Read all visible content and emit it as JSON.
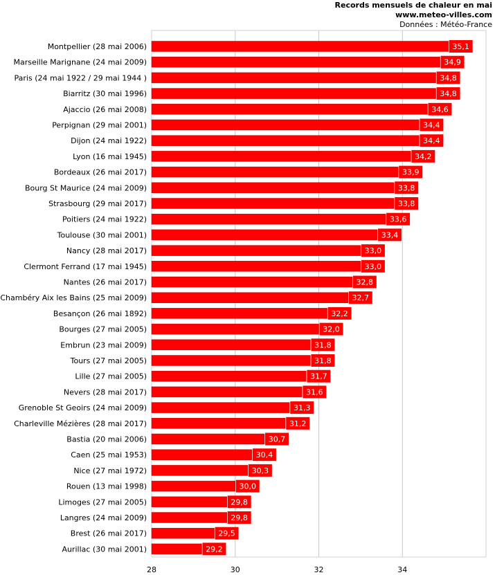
{
  "header": {
    "title": "Records mensuels de chaleur en mai",
    "website": "www.meteo-villes.com",
    "source": "Données : Météo-France"
  },
  "colors": {
    "bar": "#ff0000",
    "bar_border": "#cc0000",
    "grid": "#c8c8c8",
    "label_text": "#ffffff"
  },
  "chart_data": {
    "type": "bar",
    "orientation": "horizontal",
    "title": "Records mensuels de chaleur en mai",
    "xlim": [
      28,
      36
    ],
    "xticks": [
      28,
      30,
      32,
      34
    ],
    "grid": true,
    "categories": [
      "Montpellier (28 mai 2006)",
      "Marseille Marignane (24 mai 2009)",
      "Paris (24 mai 1922 / 29 mai 1944 )",
      "Biarritz (30 mai 1996)",
      "Ajaccio (26 mai 2008)",
      "Perpignan (29 mai 2001)",
      "Dijon (24 mai 1922)",
      "Lyon (16 mai 1945)",
      "Bordeaux (26 mai 2017)",
      "Bourg St Maurice (24 mai 2009)",
      "Strasbourg (29 mai 2017)",
      "Poitiers (24 mai 1922)",
      "Toulouse (30 mai 2001)",
      "Nancy (28 mai 2017)",
      "Clermont Ferrand (17 mai 1945)",
      "Nantes (26 mai 2017)",
      "Chambéry Aix les Bains (25 mai 2009)",
      "Besançon (26 mai 1892)",
      "Bourges (27 mai 2005)",
      "Embrun (23 mai 2009)",
      "Tours (27 mai 2005)",
      "Lille (27 mai 2005)",
      "Nevers (28 mai 2017)",
      "Grenoble St Geoirs (24 mai 2009)",
      "Charleville Mézières (28 mai 2017)",
      "Bastia (20 mai 2006)",
      "Caen (25 mai 1953)",
      "Nice (27 mai 1972)",
      "Rouen (13 mai 1998)",
      "Limoges (27 mai 2005)",
      "Langres (24 mai 2009)",
      "Brest (26 mai 2017)",
      "Aurillac (30 mai 2001)"
    ],
    "values": [
      35.1,
      34.9,
      34.8,
      34.8,
      34.6,
      34.4,
      34.4,
      34.2,
      33.9,
      33.8,
      33.8,
      33.6,
      33.4,
      33.0,
      33.0,
      32.8,
      32.7,
      32.2,
      32.0,
      31.8,
      31.8,
      31.7,
      31.6,
      31.3,
      31.2,
      30.7,
      30.4,
      30.3,
      30.0,
      29.8,
      29.8,
      29.5,
      29.2
    ],
    "value_labels": [
      "35,1",
      "34,9",
      "34,8",
      "34,8",
      "34,6",
      "34,4",
      "34,4",
      "34,2",
      "33,9",
      "33,8",
      "33,8",
      "33,6",
      "33,4",
      "33,0",
      "33,0",
      "32,8",
      "32,7",
      "32,2",
      "32,0",
      "31,8",
      "31,8",
      "31,7",
      "31,6",
      "31,3",
      "31,2",
      "30,7",
      "30,4",
      "30,3",
      "30,0",
      "29,8",
      "29,8",
      "29,5",
      "29,2"
    ]
  }
}
